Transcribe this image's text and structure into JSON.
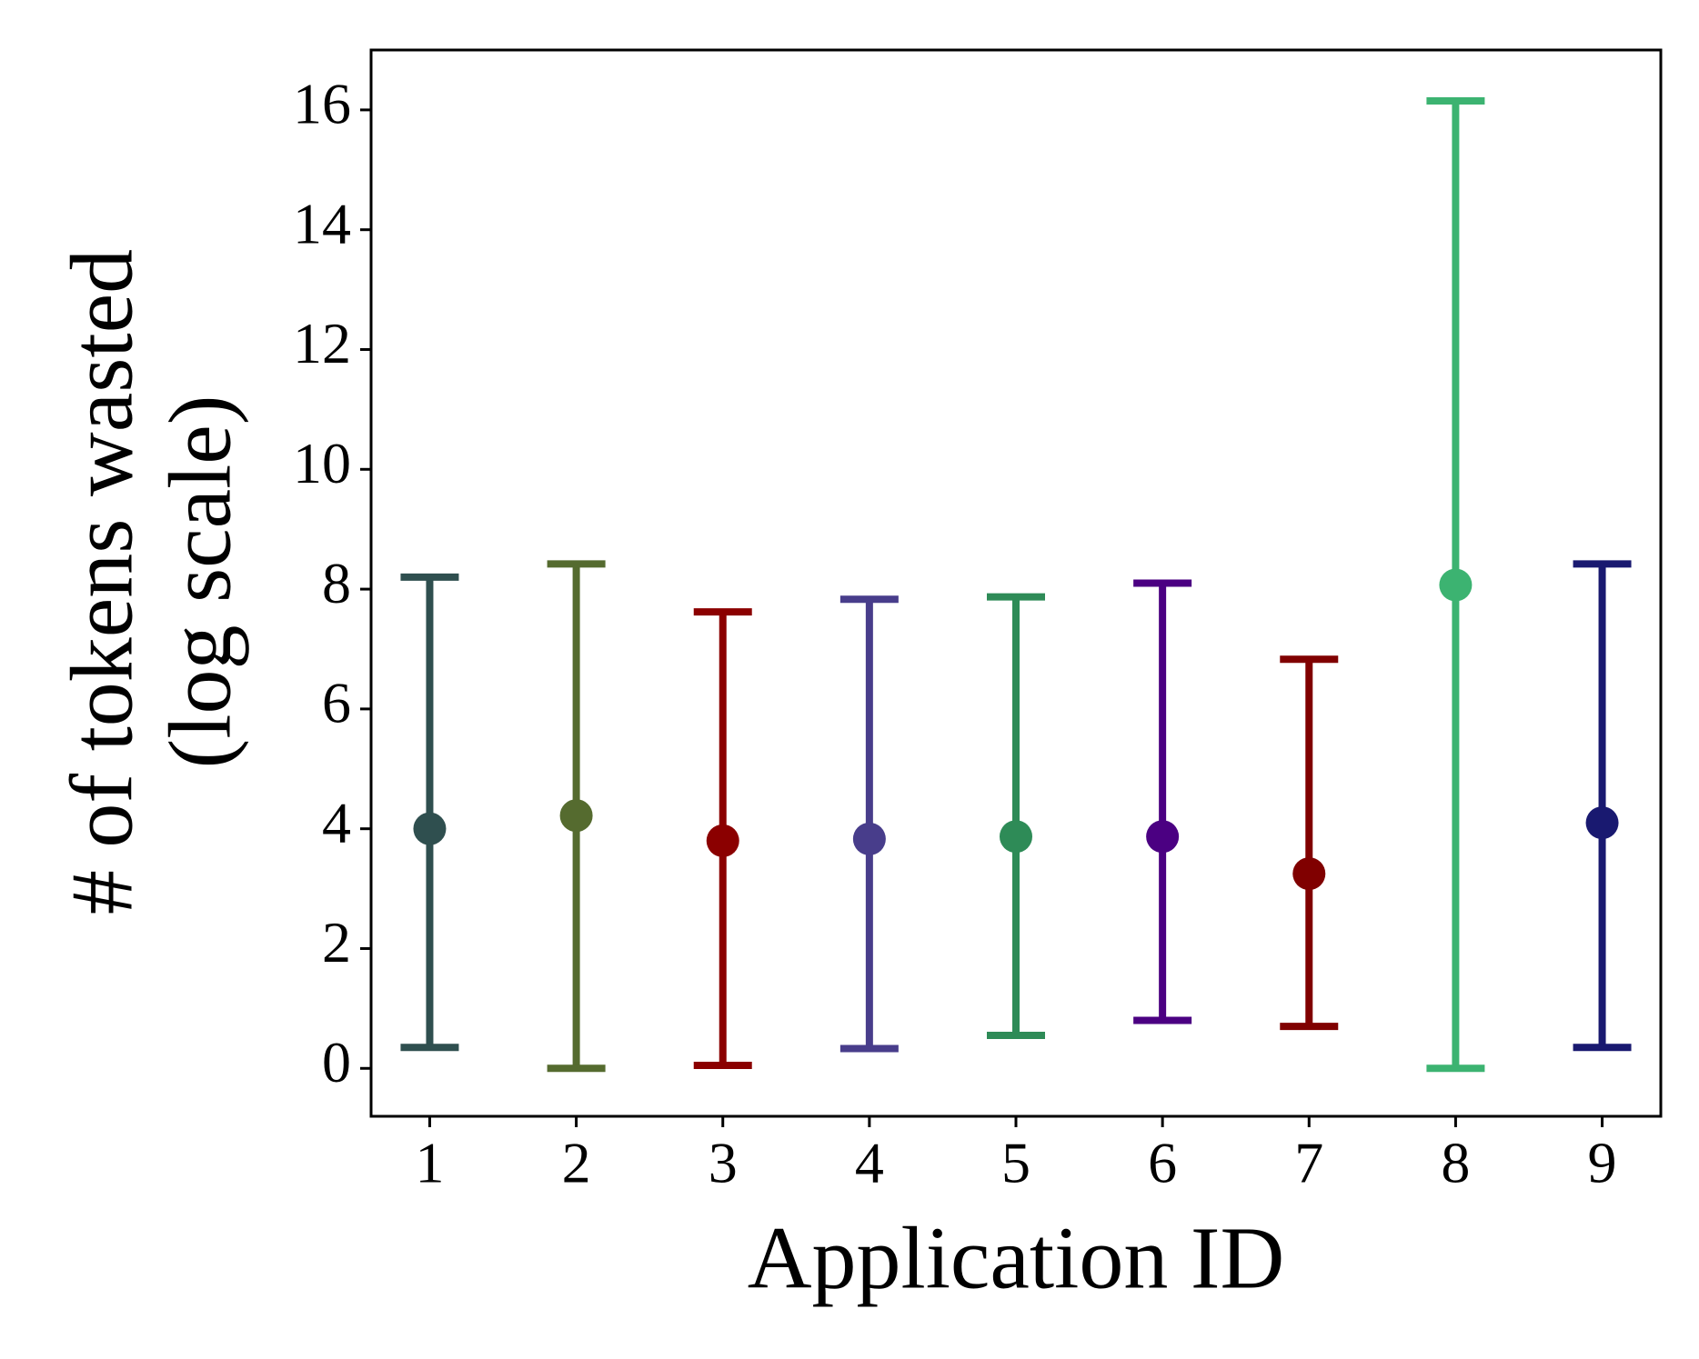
{
  "chart_data": {
    "type": "errorbar",
    "xlabel": "Application ID",
    "ylabel": [
      "# of tokens wasted",
      "(log scale)"
    ],
    "x": [
      1,
      2,
      3,
      4,
      5,
      6,
      7,
      8,
      9
    ],
    "values": [
      4.0,
      4.22,
      3.8,
      3.83,
      3.87,
      3.87,
      3.25,
      8.07,
      4.1
    ],
    "lower": [
      0.35,
      0.0,
      0.05,
      0.33,
      0.55,
      0.8,
      0.7,
      0.0,
      0.35
    ],
    "upper": [
      8.2,
      8.42,
      7.62,
      7.83,
      7.87,
      8.1,
      6.83,
      16.15,
      8.42
    ],
    "colors": [
      "#2f4f4f",
      "#556b2f",
      "#8b0000",
      "#483d8b",
      "#2e8b57",
      "#4b0082",
      "#800000",
      "#3cb371",
      "#191970"
    ],
    "xlim": [
      0.6,
      9.4
    ],
    "xticks": [
      1,
      2,
      3,
      4,
      5,
      6,
      7,
      8,
      9
    ],
    "ylim": [
      -0.8,
      17.0
    ],
    "yticks": [
      0,
      2,
      4,
      6,
      8,
      10,
      12,
      14,
      16
    ]
  }
}
